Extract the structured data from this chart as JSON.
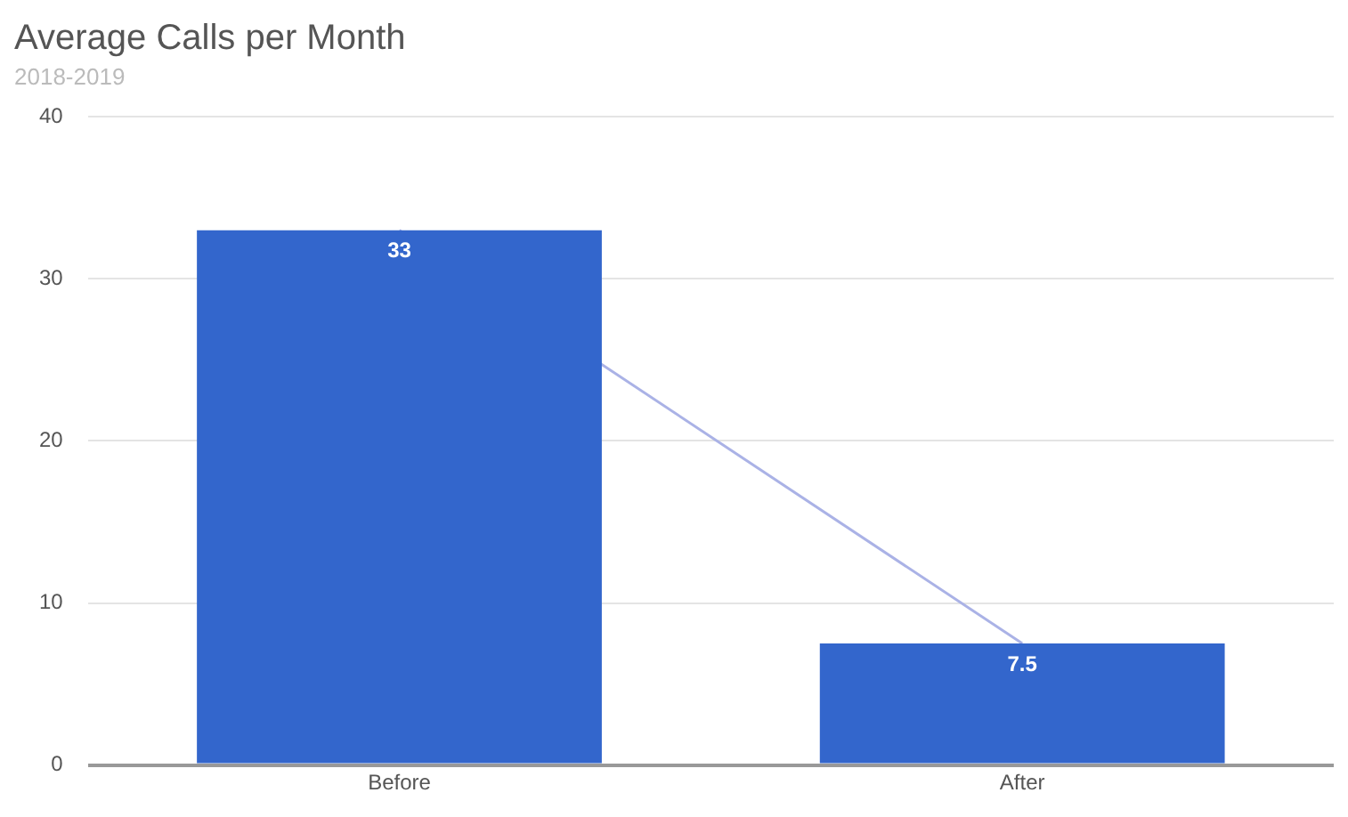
{
  "chart_data": {
    "type": "bar",
    "title": "Average Calls per Month",
    "subtitle": "2018-2019",
    "categories": [
      "Before",
      "After"
    ],
    "series": [
      {
        "color": "#3366cc",
        "values": [
          33,
          7.5
        ],
        "value_labels": [
          "33",
          "7.5"
        ]
      },
      {
        "type": "line",
        "color": "#aab2e6",
        "values": [
          33,
          7.5
        ]
      }
    ],
    "ylim": [
      0,
      40
    ],
    "yticks": [
      0,
      10,
      20,
      30,
      40
    ],
    "grid": "y",
    "legend": false,
    "marker": "none"
  }
}
